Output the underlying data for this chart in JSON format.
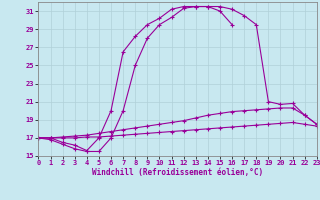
{
  "xlabel": "Windchill (Refroidissement éolien,°C)",
  "ylim": [
    15,
    32
  ],
  "xlim": [
    0,
    23
  ],
  "yticks": [
    15,
    17,
    19,
    21,
    23,
    25,
    27,
    29,
    31
  ],
  "xticks": [
    0,
    1,
    2,
    3,
    4,
    5,
    6,
    7,
    8,
    9,
    10,
    11,
    12,
    13,
    14,
    15,
    16,
    17,
    18,
    19,
    20,
    21,
    22,
    23
  ],
  "line_color": "#990099",
  "bg_color": "#c8e8f0",
  "grid_color": "#b0d0d8",
  "line1_x": [
    0,
    1,
    2,
    3,
    4,
    5,
    6,
    7,
    8,
    9,
    10,
    11,
    12,
    13,
    14,
    15,
    16
  ],
  "line1_y": [
    17.0,
    17.0,
    16.5,
    16.2,
    15.6,
    17.0,
    20.0,
    26.5,
    28.2,
    29.5,
    30.2,
    31.2,
    31.5,
    31.5,
    31.5,
    31.0,
    29.5
  ],
  "line2_x": [
    0,
    1,
    2,
    3,
    4,
    5,
    6,
    7,
    8,
    9,
    10,
    11,
    12,
    13,
    14,
    15,
    16,
    17,
    18,
    19,
    20,
    21,
    22,
    23
  ],
  "line2_y": [
    17.0,
    16.8,
    16.3,
    15.8,
    15.5,
    15.5,
    17.0,
    20.0,
    25.0,
    28.0,
    29.5,
    30.3,
    31.3,
    31.5,
    31.5,
    31.5,
    31.2,
    30.5,
    29.5,
    21.0,
    20.7,
    20.8,
    19.5,
    18.5
  ],
  "line3_x": [
    0,
    1,
    2,
    3,
    4,
    5,
    6,
    7,
    8,
    9,
    10,
    11,
    12,
    13,
    14,
    15,
    16,
    17,
    18,
    19,
    20,
    21,
    22,
    23
  ],
  "line3_y": [
    17.0,
    17.0,
    17.1,
    17.2,
    17.3,
    17.5,
    17.7,
    17.9,
    18.1,
    18.3,
    18.5,
    18.7,
    18.9,
    19.2,
    19.5,
    19.7,
    19.9,
    20.0,
    20.1,
    20.2,
    20.3,
    20.3,
    19.5,
    18.5
  ],
  "line4_x": [
    0,
    1,
    2,
    3,
    4,
    5,
    6,
    7,
    8,
    9,
    10,
    11,
    12,
    13,
    14,
    15,
    16,
    17,
    18,
    19,
    20,
    21,
    22,
    23
  ],
  "line4_y": [
    17.0,
    17.0,
    17.0,
    17.0,
    17.1,
    17.1,
    17.2,
    17.3,
    17.4,
    17.5,
    17.6,
    17.7,
    17.8,
    17.9,
    18.0,
    18.1,
    18.2,
    18.3,
    18.4,
    18.5,
    18.6,
    18.7,
    18.5,
    18.3
  ]
}
